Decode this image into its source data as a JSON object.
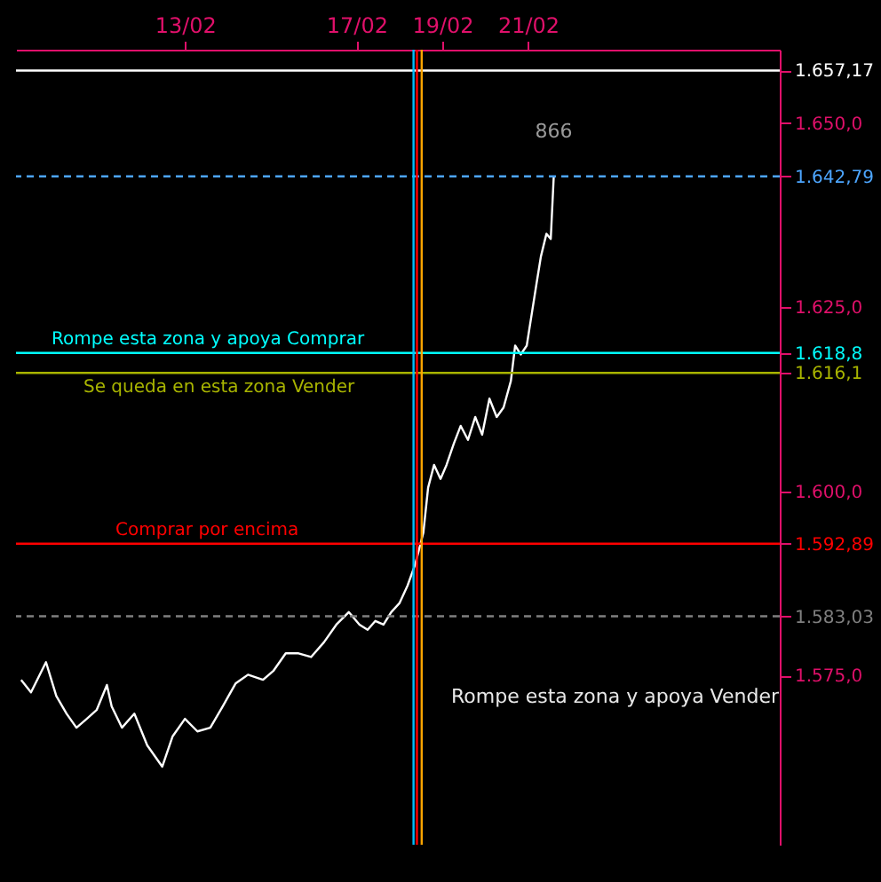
{
  "chart_data": {
    "type": "line",
    "x": [
      "--02-09T04:19",
      "--02-09T09:50",
      "--02-09T18:14",
      "--02-10T00:00",
      "--02-10T05:46",
      "--02-10T11:17",
      "--02-10T17:02",
      "--02-10T22:34",
      "--02-11T04:19",
      "--02-11T06:58",
      "--02-11T12:43",
      "--02-11T19:41",
      "--02-12T02:53",
      "--02-12T11:17",
      "--02-12T17:02",
      "--02-13T00:00",
      "--02-13T06:58",
      "--02-13T14:10",
      "--02-13T21:07",
      "--02-14T04:19",
      "--02-14T11:17",
      "--02-14T19:41",
      "--02-15T01:26",
      "--02-15T08:24",
      "--02-15T15:36",
      "--02-15T22:34",
      "--02-16T05:46",
      "--02-16T12:43",
      "--02-16T19:41",
      "--02-17T01:41",
      "--02-17T06:14",
      "--02-17T10:34",
      "--02-17T15:07",
      "--02-17T19:26",
      "--02-18T00:00",
      "--02-18T04:34",
      "--02-18T08:53",
      "--02-18T13:26",
      "--02-18T16:05",
      "--02-18T19:26",
      "--02-18T23:02",
      "--02-19T02:24",
      "--02-19T06:29",
      "--02-19T10:19",
      "--02-19T14:24",
      "--02-19T18:29",
      "--02-19T22:19",
      "--02-20T02:24",
      "--02-20T06:29",
      "--02-20T10:19",
      "--02-20T14:24",
      "--02-20T16:48",
      "--02-20T19:55",
      "--02-20T23:17",
      "--02-21T02:24",
      "--02-21T04:48",
      "--02-21T07:12",
      "--02-21T10:19",
      "--02-21T12:43",
      "--02-21T14:24"
    ],
    "series": [
      {
        "color": "#ffffff",
        "values": [
          1574.4,
          1572.7,
          1576.8,
          1572.2,
          1569.8,
          1567.9,
          1569.1,
          1570.3,
          1573.7,
          1570.8,
          1567.9,
          1569.8,
          1565.5,
          1562.6,
          1566.7,
          1569.1,
          1567.4,
          1567.9,
          1570.8,
          1573.9,
          1575.1,
          1574.4,
          1575.6,
          1578.0,
          1578.0,
          1577.5,
          1579.5,
          1581.9,
          1583.6,
          1581.9,
          1581.2,
          1582.4,
          1581.9,
          1583.6,
          1584.8,
          1587.2,
          1590.1,
          1594.4,
          1600.5,
          1603.6,
          1601.7,
          1603.6,
          1606.5,
          1608.9,
          1607.0,
          1610.1,
          1607.7,
          1612.6,
          1610.1,
          1611.4,
          1615.0,
          1619.8,
          1618.6,
          1619.8,
          1624.6,
          1628.3,
          1631.9,
          1635.0,
          1634.3,
          1642.8
        ]
      }
    ],
    "xlim": [
      "--02-09T01:26",
      "--02-26T20:53"
    ],
    "xticks": [
      {
        "value": "--02-13",
        "label": "13/02"
      },
      {
        "value": "--02-17",
        "label": "17/02"
      },
      {
        "value": "--02-19",
        "label": "19/02"
      },
      {
        "value": "--02-21",
        "label": "21/02"
      }
    ],
    "ylim": [
      1552,
      1660
    ],
    "yticks": [
      {
        "value": 1575,
        "label": "1.575,0"
      },
      {
        "value": 1583.03,
        "label": "1.583,03"
      },
      {
        "value": 1592.89,
        "label": "1.592,89"
      },
      {
        "value": 1600,
        "label": "1.600,0"
      },
      {
        "value": 1616.1,
        "label": "1.616,1"
      },
      {
        "value": 1618.8,
        "label": "1.618,8"
      },
      {
        "value": 1625,
        "label": "1.625,0"
      },
      {
        "value": 1642.79,
        "label": "1.642,79"
      },
      {
        "value": 1650,
        "label": "1.650,0"
      },
      {
        "value": 1657.17,
        "label": "1.657,17"
      }
    ],
    "ref_lines": [
      {
        "axis": "y",
        "value": 1657.17,
        "color": "#ffffff"
      },
      {
        "axis": "y",
        "value": 1642.79,
        "color": "#4da6ff",
        "line_style": "dashed"
      },
      {
        "axis": "y",
        "value": 1618.8,
        "label": "Rompe esta zona y apoya Comprar",
        "color": "#00ffff"
      },
      {
        "axis": "y",
        "value": 1616.1,
        "label": "Se queda en esta zona Vender",
        "color": "#a8b400"
      },
      {
        "axis": "y",
        "value": 1592.89,
        "label": "Comprar por encima",
        "color": "#ff0000"
      },
      {
        "axis": "y",
        "value": 1583.03,
        "color": "#808080",
        "line_style": "dashed"
      },
      {
        "axis": "x",
        "value": "--02-18T07:55",
        "color": "#00bfff"
      },
      {
        "axis": "x",
        "value": "--02-18T09:50",
        "color": "#ff0000"
      },
      {
        "axis": "x",
        "value": "--02-18T12:29",
        "color": "#ffa500"
      }
    ],
    "annotations": [
      "866",
      "Rompe esta zona y apoya Vender"
    ],
    "grid": false,
    "legend": false
  }
}
